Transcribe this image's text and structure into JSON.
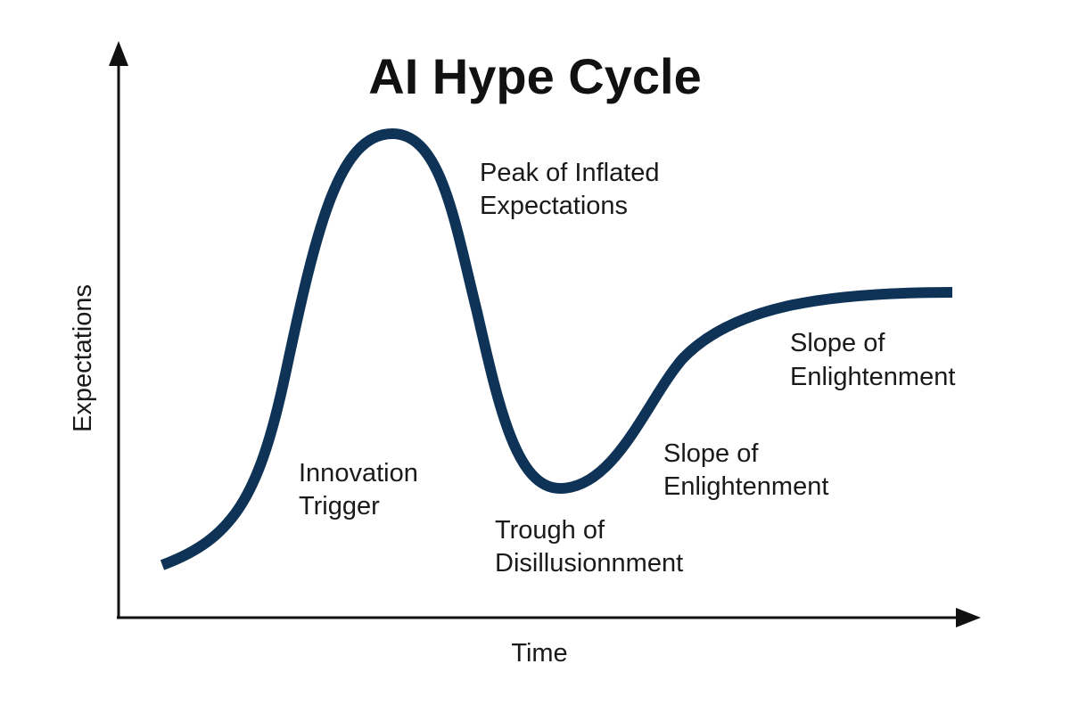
{
  "title": "AI Hype Cycle",
  "axes": {
    "x_label": "Time",
    "y_label": "Expectations"
  },
  "phases": [
    {
      "line1": "Innovation",
      "line2": "Trigger"
    },
    {
      "line1": "Peak of Inflated",
      "line2": "Expectations"
    },
    {
      "line1": "Trough of",
      "line2": "Disillusionnment"
    },
    {
      "line1": "Slope of",
      "line2": "Enlightenment"
    },
    {
      "line1": "Slope of",
      "line2": "Enlightenment"
    }
  ],
  "colors": {
    "curve": "#0f3357",
    "axis": "#111111",
    "text": "#1a1a1a",
    "title": "#111111"
  }
}
